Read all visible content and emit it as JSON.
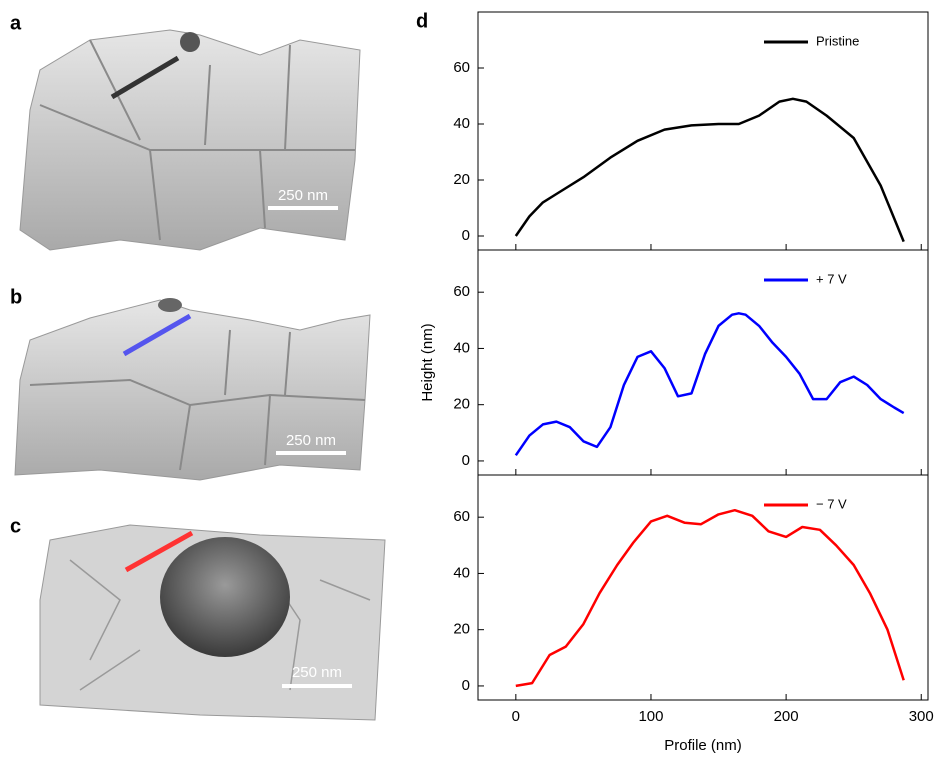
{
  "image_panels": [
    {
      "label": "a",
      "scale_bar": "250 nm"
    },
    {
      "label": "b",
      "scale_bar": "250 nm"
    },
    {
      "label": "c",
      "scale_bar": "250 nm"
    }
  ],
  "chart_label": "d",
  "chart_data": [
    {
      "type": "line",
      "xlim": [
        -28,
        305
      ],
      "ylim": [
        -5,
        80
      ],
      "xticks": [
        0,
        100,
        200,
        300
      ],
      "yticks": [
        0,
        20,
        40,
        60
      ],
      "legend": "upper right",
      "series": [
        {
          "name": "Pristine",
          "color": "#000000",
          "x": [
            0,
            10,
            20,
            30,
            50,
            70,
            90,
            110,
            130,
            150,
            165,
            180,
            195,
            205,
            215,
            230,
            250,
            270,
            287
          ],
          "values": [
            0,
            7,
            12,
            15,
            21,
            28,
            34,
            38,
            39.5,
            40,
            40,
            43,
            48,
            49,
            48,
            43,
            35,
            18,
            -2
          ]
        }
      ]
    },
    {
      "type": "line",
      "xlim": [
        -28,
        305
      ],
      "ylim": [
        -5,
        75
      ],
      "xticks": [
        0,
        100,
        200,
        300
      ],
      "yticks": [
        0,
        20,
        40,
        60
      ],
      "legend": "upper right",
      "y_label": "Height  (nm)",
      "series": [
        {
          "name": "+ 7 V",
          "color": "#0000ff",
          "x": [
            0,
            10,
            20,
            30,
            40,
            50,
            60,
            70,
            80,
            90,
            100,
            110,
            120,
            130,
            140,
            150,
            160,
            165,
            170,
            180,
            190,
            200,
            210,
            220,
            230,
            240,
            250,
            260,
            270,
            280,
            287
          ],
          "values": [
            2,
            9,
            13,
            14,
            12,
            7,
            5,
            12,
            27,
            37,
            39,
            33,
            23,
            24,
            38,
            48,
            52,
            52.5,
            52,
            48,
            42,
            37,
            31,
            22,
            22,
            28,
            30,
            27,
            22,
            19,
            17
          ]
        }
      ]
    },
    {
      "type": "line",
      "xlim": [
        -28,
        305
      ],
      "ylim": [
        -5,
        75
      ],
      "xticks": [
        0,
        100,
        200,
        300
      ],
      "yticks": [
        0,
        20,
        40,
        60
      ],
      "legend": "upper right",
      "x_label": "Profile (nm)",
      "series": [
        {
          "name": "− 7 V",
          "color": "#ff0000",
          "x": [
            0,
            12,
            25,
            37,
            50,
            62,
            75,
            87,
            100,
            112,
            125,
            137,
            150,
            162,
            175,
            187,
            200,
            212,
            225,
            237,
            250,
            262,
            275,
            287
          ],
          "values": [
            0,
            1,
            11,
            14,
            22,
            33,
            43,
            51,
            58.5,
            60.5,
            58,
            57.5,
            61,
            62.5,
            60.5,
            55,
            53,
            56.5,
            55.5,
            50,
            43,
            33,
            20,
            2
          ]
        }
      ]
    }
  ]
}
